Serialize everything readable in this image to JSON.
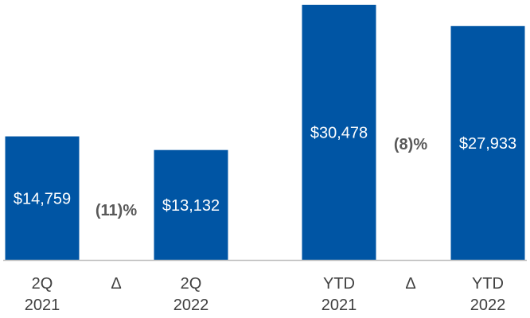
{
  "chart_data": {
    "type": "bar",
    "categories": [
      {
        "line1": "2Q",
        "line2": "2021"
      },
      {
        "line1": "Δ",
        "line2": ""
      },
      {
        "line1": "2Q",
        "line2": "2022"
      },
      {
        "line1": "YTD",
        "line2": "2021"
      },
      {
        "line1": "Δ",
        "line2": ""
      },
      {
        "line1": "YTD",
        "line2": "2022"
      }
    ],
    "bars": [
      {
        "category_index": 0,
        "value": 14759,
        "label": "$14,759"
      },
      {
        "category_index": 2,
        "value": 13132,
        "label": "$13,132"
      },
      {
        "category_index": 3,
        "value": 30478,
        "label": "$30,478"
      },
      {
        "category_index": 5,
        "value": 27933,
        "label": "$27,933"
      }
    ],
    "deltas": [
      {
        "category_index": 1,
        "label": "(11)%"
      },
      {
        "category_index": 4,
        "label": "(8)%"
      }
    ],
    "ylim": [
      0,
      30478
    ],
    "grid": false,
    "legend": "none",
    "colors": {
      "bar": "#0055A4",
      "bar_label": "#FFFFFF",
      "delta": "#595959",
      "axis": "#BFBFBF",
      "tick": "#404040"
    },
    "title": "",
    "xlabel": "",
    "ylabel": ""
  }
}
